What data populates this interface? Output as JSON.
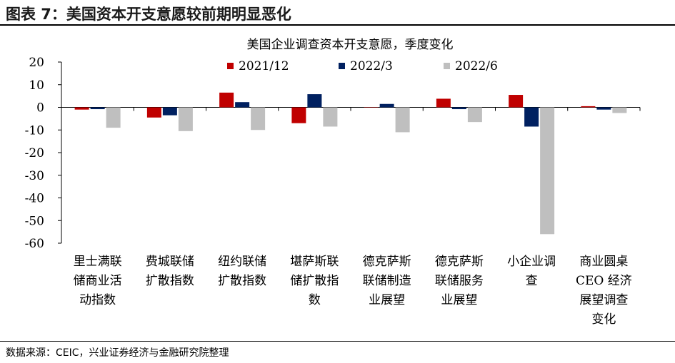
{
  "figure_title": "图表 7：美国资本开支意愿较前期明显恶化",
  "source_note": "数据来源：CEIC，兴业证券经济与金融研究院整理",
  "chart_data": {
    "type": "bar",
    "title": "美国企业调查资本开支意愿，季度变化",
    "xlabel": "",
    "ylabel": "",
    "ylim": [
      -60,
      20
    ],
    "yticks": [
      20,
      10,
      0,
      -10,
      -20,
      -30,
      -40,
      -50,
      -60
    ],
    "grid": false,
    "legend_position": "top-center",
    "categories": [
      [
        "里士满联",
        "储商业活",
        "动指数"
      ],
      [
        "费城联储",
        "扩散指数"
      ],
      [
        "纽约联储",
        "扩散指数"
      ],
      [
        "堪萨斯联",
        "储扩散指",
        "数"
      ],
      [
        "德克萨斯",
        "联储制造",
        "业展望"
      ],
      [
        "德克萨斯",
        "联储服务",
        "业展望"
      ],
      [
        "小企业调",
        "查"
      ],
      [
        "商业圆桌",
        "CEO 经济",
        "展望调查",
        "变化"
      ]
    ],
    "series": [
      {
        "name": "2021/12",
        "color": "#c00000",
        "values": [
          -1,
          -4.5,
          6.5,
          -7,
          0,
          3.8,
          5.5,
          0.5
        ]
      },
      {
        "name": "2022/3",
        "color": "#002060",
        "values": [
          -0.8,
          -3.5,
          2.3,
          5.8,
          1.5,
          -0.8,
          -8.5,
          -1
        ]
      },
      {
        "name": "2022/6",
        "color": "#bfbfbf",
        "values": [
          -9,
          -10.5,
          -10,
          -8.5,
          -11,
          -6.5,
          -56,
          -2.5
        ]
      }
    ]
  }
}
